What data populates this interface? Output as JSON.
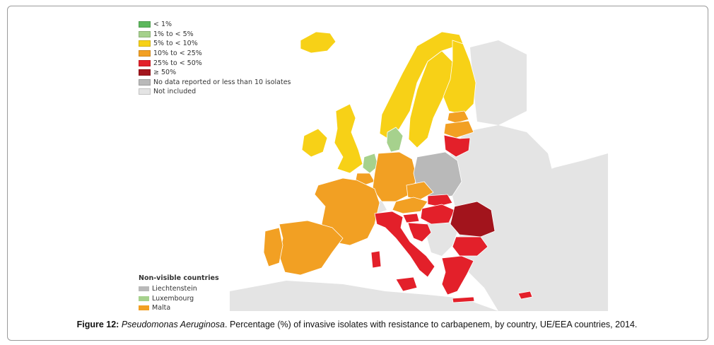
{
  "colors": {
    "lt1": "#5cb85c",
    "1to5": "#a6d18d",
    "5to10": "#f7d117",
    "10to25": "#f2a023",
    "25to50": "#e3202a",
    "ge50": "#a2141c",
    "nodata": "#b9b9b9",
    "notincluded": "#e4e4e4",
    "sea": "#ffffff",
    "border": "#ffffff"
  },
  "legend": [
    {
      "label": "< 1%",
      "color": "#5cb85c"
    },
    {
      "label": "1% to < 5%",
      "color": "#a6d18d"
    },
    {
      "label": "5% to < 10%",
      "color": "#f7d117"
    },
    {
      "label": "10% to < 25%",
      "color": "#f2a023"
    },
    {
      "label": "25% to < 50%",
      "color": "#e3202a"
    },
    {
      "label": "≥ 50%",
      "color": "#a2141c"
    },
    {
      "label": "No data reported or less than 10 isolates",
      "color": "#b9b9b9"
    },
    {
      "label": "Not included",
      "color": "#e4e4e4"
    }
  ],
  "non_visible": {
    "title": "Non-visible countries",
    "items": [
      {
        "label": "Liechtenstein",
        "color": "#b9b9b9"
      },
      {
        "label": "Luxembourg",
        "color": "#a6d18d"
      },
      {
        "label": "Malta",
        "color": "#f2a023"
      }
    ]
  },
  "caption": {
    "label": "Figure 12:",
    "species": "Pseudomonas Aeruginosa",
    "rest": ". Percentage (%) of invasive isolates with resistance to   carbapenem, by country, UE/EEA countries, 2014."
  },
  "countries": [
    {
      "name": "Iceland",
      "category": "5to10"
    },
    {
      "name": "Norway",
      "category": "5to10"
    },
    {
      "name": "Sweden",
      "category": "5to10"
    },
    {
      "name": "Finland",
      "category": "5to10"
    },
    {
      "name": "Estonia",
      "category": "10to25"
    },
    {
      "name": "Latvia",
      "category": "10to25"
    },
    {
      "name": "Lithuania",
      "category": "25to50"
    },
    {
      "name": "United Kingdom",
      "category": "5to10"
    },
    {
      "name": "Ireland",
      "category": "5to10"
    },
    {
      "name": "Denmark",
      "category": "1to5"
    },
    {
      "name": "Netherlands",
      "category": "1to5"
    },
    {
      "name": "Belgium",
      "category": "10to25"
    },
    {
      "name": "Germany",
      "category": "10to25"
    },
    {
      "name": "Poland",
      "category": "nodata"
    },
    {
      "name": "France",
      "category": "10to25"
    },
    {
      "name": "Spain",
      "category": "10to25"
    },
    {
      "name": "Portugal",
      "category": "10to25"
    },
    {
      "name": "Czech Republic",
      "category": "10to25"
    },
    {
      "name": "Austria",
      "category": "10to25"
    },
    {
      "name": "Slovakia",
      "category": "25to50"
    },
    {
      "name": "Hungary",
      "category": "25to50"
    },
    {
      "name": "Slovenia",
      "category": "25to50"
    },
    {
      "name": "Croatia",
      "category": "25to50"
    },
    {
      "name": "Italy",
      "category": "25to50"
    },
    {
      "name": "Romania",
      "category": "ge50"
    },
    {
      "name": "Bulgaria",
      "category": "25to50"
    },
    {
      "name": "Greece",
      "category": "25to50"
    },
    {
      "name": "Cyprus",
      "category": "25to50"
    },
    {
      "name": "Switzerland",
      "category": "notincluded"
    }
  ]
}
